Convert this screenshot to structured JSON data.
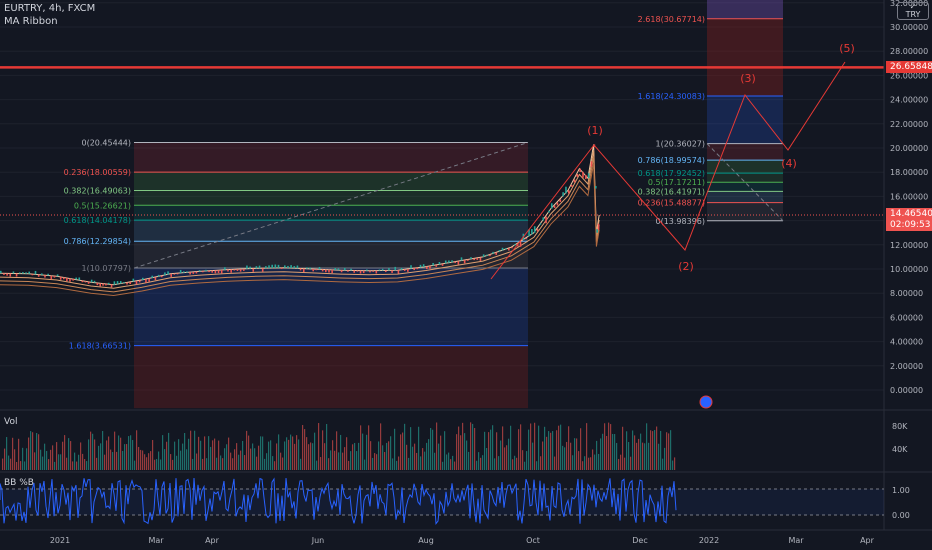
{
  "header": {
    "symbol": "EURTRY, 4h, FXCM",
    "indicator": "MA Ribbon"
  },
  "currency_box": {
    "code": "TRY",
    "tag": "✓"
  },
  "price_tags": {
    "red_line": "26.65848",
    "last_price": "14.46540",
    "countdown": "02:09:53"
  },
  "panes": {
    "volume": {
      "label": "Vol",
      "ticks": [
        "80K",
        "40K"
      ]
    },
    "bbpb": {
      "label": "BB %B",
      "ticks": [
        "1.00",
        "0.00"
      ]
    }
  },
  "colors": {
    "background": "#131722",
    "candle_up": "#26a69a",
    "candle_down": "#ef5350",
    "fib_line": "#ef5350",
    "bbpb_line": "#2962ff",
    "wave_line": "#e53935"
  },
  "chart_data": {
    "type": "line",
    "xlim_labels": [
      "2021",
      "Mar",
      "Apr",
      "Jun",
      "Aug",
      "Oct",
      "Dec",
      "2022",
      "Mar",
      "Apr"
    ],
    "y_ticks": [
      "32.00000",
      "30.00000",
      "28.00000",
      "26.00000",
      "24.00000",
      "22.00000",
      "20.00000",
      "18.00000",
      "16.00000",
      "14.00000",
      "12.00000",
      "10.00000",
      "8.00000",
      "6.00000",
      "4.00000",
      "2.00000",
      "0.00000"
    ],
    "ylim": [
      -1.5,
      32.5
    ],
    "series": [
      {
        "values": [
          [
            0,
            9.65
          ],
          [
            0.5,
            9.6
          ],
          [
            1,
            9.4
          ],
          [
            1.6,
            8.9
          ],
          [
            2.0,
            8.7
          ],
          [
            2.5,
            9.1
          ],
          [
            3.0,
            9.6
          ],
          [
            3.5,
            9.8
          ],
          [
            4.0,
            9.95
          ],
          [
            4.5,
            10.05
          ],
          [
            5.0,
            10.1
          ],
          [
            5.5,
            10.0
          ],
          [
            6.0,
            9.9
          ],
          [
            6.5,
            9.85
          ],
          [
            7.0,
            9.9
          ],
          [
            7.5,
            10.2
          ],
          [
            8.0,
            10.6
          ],
          [
            8.5,
            11.0
          ],
          [
            9.0,
            11.8
          ],
          [
            9.4,
            13.0
          ],
          [
            9.7,
            15.0
          ],
          [
            10.0,
            16.5
          ],
          [
            10.2,
            18.3
          ],
          [
            10.35,
            17.5
          ],
          [
            10.45,
            20.3
          ],
          [
            10.5,
            13.0
          ],
          [
            10.55,
            14.47
          ]
        ],
        "x_unit": "months since Jan 2021"
      }
    ],
    "fib_left": [
      {
        "ratio": "0",
        "value": "20.45444",
        "label": "0(20.45444)"
      },
      {
        "ratio": "0.236",
        "value": "18.00559",
        "label": "0.236(18.00559)"
      },
      {
        "ratio": "0.382",
        "value": "16.49063",
        "label": "0.382(16.49063)"
      },
      {
        "ratio": "0.5",
        "value": "15.26621",
        "label": "0.5(15.26621)"
      },
      {
        "ratio": "0.618",
        "value": "14.04178",
        "label": "0.618(14.04178)"
      },
      {
        "ratio": "0.786",
        "value": "12.29854",
        "label": "0.786(12.29854)"
      },
      {
        "ratio": "1",
        "value": "10.07797",
        "label": "1(10.07797)"
      },
      {
        "ratio": "1.618",
        "value": "3.66531",
        "label": "1.618(3.66531)"
      }
    ],
    "fib_right": [
      {
        "ratio": "2.618",
        "value": "30.67714",
        "label": "2.618(30.67714)"
      },
      {
        "ratio": "1.618",
        "value": "24.30083",
        "label": "1.618(24.30083)"
      },
      {
        "ratio": "1",
        "value": "20.36027",
        "label": "1(20.36027)"
      },
      {
        "ratio": "0.786",
        "value": "18.99574",
        "label": "0.786(18.99574)"
      },
      {
        "ratio": "0.618",
        "value": "17.92452",
        "label": "0.618(17.92452)"
      },
      {
        "ratio": "0.5",
        "value": "17.17211",
        "label": "0.5(17.17211)"
      },
      {
        "ratio": "0.382",
        "value": "16.41971",
        "label": "0.382(16.41971)"
      },
      {
        "ratio": "0.236",
        "value": "15.48877",
        "label": "0.236(15.48877)"
      },
      {
        "ratio": "0",
        "value": "13.98396",
        "label": "0(13.98396)"
      }
    ],
    "wave_labels": [
      "(1)",
      "(2)",
      "(3)",
      "(4)",
      "(5)"
    ],
    "red_line_value": 26.65848,
    "last_price": 14.4654
  }
}
